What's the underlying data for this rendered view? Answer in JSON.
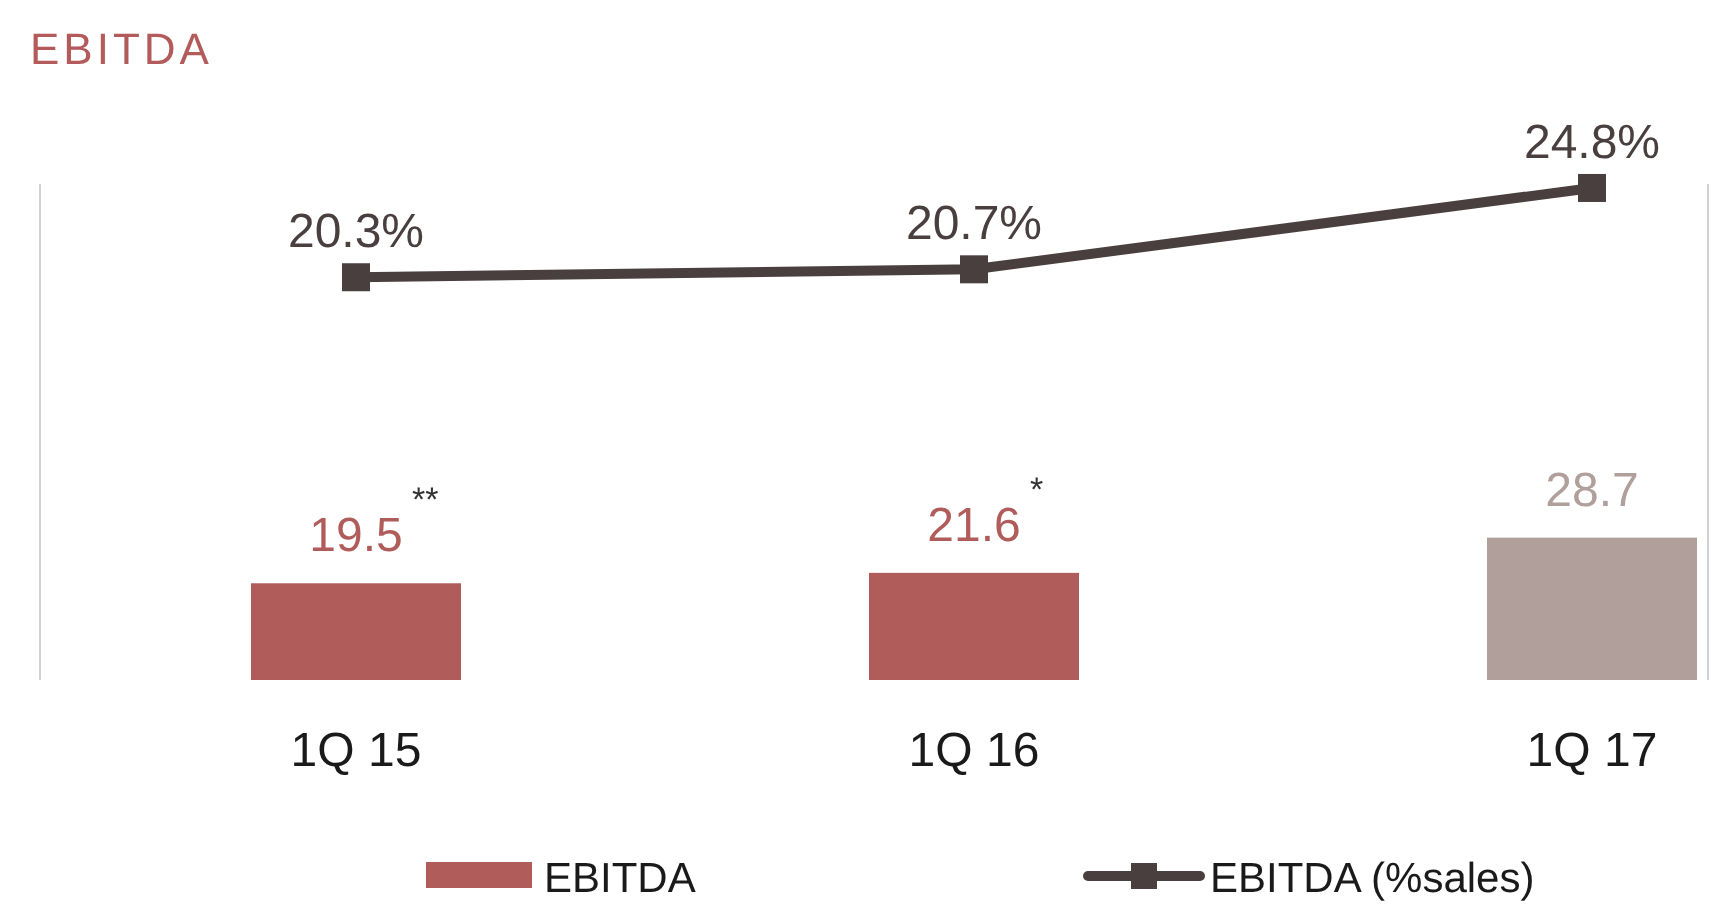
{
  "chart_data": {
    "type": "bar",
    "title": "EBITDA",
    "categories": [
      "1Q 15",
      "1Q 16",
      "1Q 17"
    ],
    "series": [
      {
        "name": "EBITDA",
        "type": "bar",
        "color": "#b05c5b",
        "colors": [
          "#b05c5b",
          "#b05c5b",
          "#b09f9b"
        ],
        "values": [
          19.5,
          21.6,
          28.7
        ],
        "value_labels": [
          "19.5",
          "21.6",
          "28.7"
        ]
      },
      {
        "name": "EBITDA (%sales)",
        "type": "line",
        "axis": "y2",
        "color": "#4a3f3f",
        "marker": "square",
        "values": [
          20.3,
          20.7,
          24.8
        ],
        "value_labels": [
          "20.3%",
          "20.7%",
          "24.8%"
        ]
      }
    ],
    "ylim": [
      0,
      100
    ],
    "y2lim": [
      0,
      25
    ],
    "annotations": [
      {
        "text": "**",
        "x": "1Q 15",
        "y": 19.5
      },
      {
        "text": "*",
        "x": "1Q 16",
        "y": 21.6
      }
    ],
    "tick_labels": "x",
    "legend": "bottom"
  }
}
